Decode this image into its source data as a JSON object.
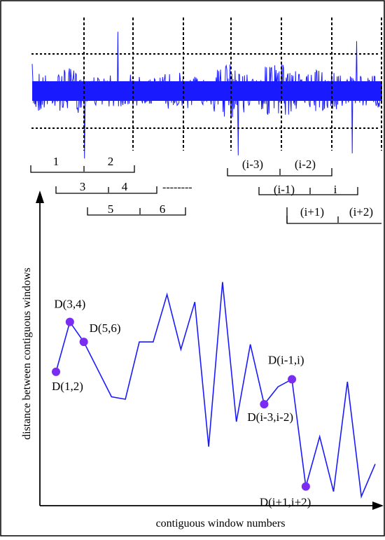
{
  "signal": {
    "color": "#1a1aff",
    "vertical_markers": 8
  },
  "windows": {
    "row1": [
      {
        "labels": [
          "1",
          "2"
        ]
      },
      {
        "labels": [
          "(i-3)",
          "(i-2)"
        ]
      }
    ],
    "row2": [
      {
        "labels": [
          "3",
          "4"
        ]
      },
      {
        "labels": [
          "(i-1)",
          "i"
        ]
      }
    ],
    "row3": [
      {
        "labels": [
          "5",
          "6"
        ]
      },
      {
        "labels": [
          "(i+1)",
          "(i+2)"
        ]
      }
    ],
    "ellipsis": "--------"
  },
  "chart_data": {
    "type": "line",
    "xlabel": "contiguous window numbers",
    "ylabel": "distance between contiguous windows",
    "line_color": "#1a1aff",
    "point_color": "#7a2cf0",
    "values": [
      0.52,
      0.72,
      0.64,
      0.53,
      0.42,
      0.41,
      0.64,
      0.64,
      0.83,
      0.61,
      0.8,
      0.22,
      0.88,
      0.32,
      0.63,
      0.39,
      0.46,
      0.49,
      0.06,
      0.26,
      0.04,
      0.48,
      0.02,
      0.15
    ],
    "points": [
      {
        "index": 0,
        "label": "D(1,2)"
      },
      {
        "index": 1,
        "label": "D(3,4)"
      },
      {
        "index": 2,
        "label": "D(5,6)"
      },
      {
        "index": 15,
        "label": "D(i-3,i-2)"
      },
      {
        "index": 17,
        "label": "D(i-1,i)"
      },
      {
        "index": 18,
        "label": "D(i+1,i+2)"
      }
    ]
  }
}
